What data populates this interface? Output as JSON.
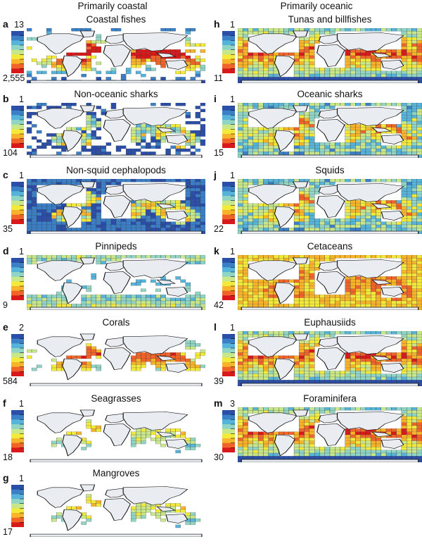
{
  "columns": {
    "left": "Primarily coastal",
    "right": "Primarily oceanic"
  },
  "panels": [
    {
      "letter": "a",
      "title": "Coastal fishes",
      "max": "13",
      "min": "2,555",
      "style": "coastal-fish"
    },
    {
      "letter": "b",
      "title": "Non-oceanic sharks",
      "max": "1",
      "min": "104",
      "style": "sparse-blue"
    },
    {
      "letter": "c",
      "title": "Non-squid cephalopods",
      "max": "1",
      "min": "35",
      "style": "full-blue"
    },
    {
      "letter": "d",
      "title": "Pinnipeds",
      "max": "1",
      "min": "9",
      "style": "polar"
    },
    {
      "letter": "e",
      "title": "Corals",
      "max": "2",
      "min": "584",
      "style": "tropical"
    },
    {
      "letter": "f",
      "title": "Seagrasses",
      "max": "1",
      "min": "18",
      "style": "coast-only"
    },
    {
      "letter": "g",
      "title": "Mangroves",
      "max": "1",
      "min": "17",
      "style": "coast-only"
    },
    {
      "letter": "h",
      "title": "Tunas and billfishes",
      "max": "1",
      "min": "11",
      "style": "warm-full"
    },
    {
      "letter": "i",
      "title": "Oceanic sharks",
      "max": "1",
      "min": "15",
      "style": "mid-full"
    },
    {
      "letter": "j",
      "title": "Squids",
      "max": "1",
      "min": "22",
      "style": "mid-full"
    },
    {
      "letter": "k",
      "title": "Cetaceans",
      "max": "1",
      "min": "42",
      "style": "yellow-full"
    },
    {
      "letter": "l",
      "title": "Euphausiids",
      "max": "1",
      "min": "39",
      "style": "warm-full"
    },
    {
      "letter": "m",
      "title": "Foraminifera",
      "max": "3",
      "min": "30",
      "style": "warm-full"
    }
  ],
  "colors": {
    "land": "#e9edf1",
    "ramp": [
      "#2b4fa8",
      "#3b7fc7",
      "#56b3d9",
      "#8fd4c4",
      "#c8e68a",
      "#f2e93b",
      "#f7b329",
      "#f0642a",
      "#d7191c"
    ]
  }
}
